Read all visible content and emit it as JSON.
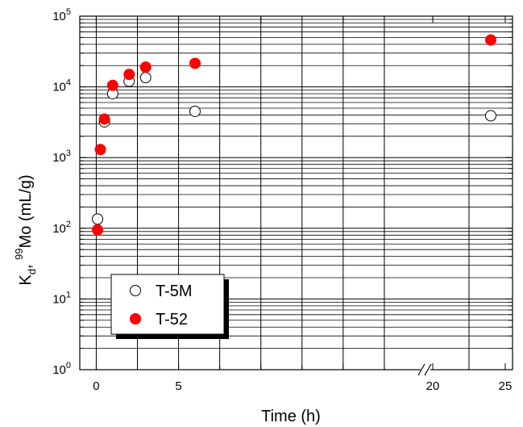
{
  "chart_data": {
    "type": "scatter",
    "title": "",
    "xlabel": "Time (h)",
    "ylabel": {
      "prefix": "K",
      "sub": "d",
      "comma": ", ",
      "sup": "99",
      "rest": "Mo (mL/g)"
    },
    "y_scale": "log",
    "ylim": [
      1,
      100000
    ],
    "x_segments": [
      {
        "range": [
          -1,
          20
        ]
      },
      {
        "range": [
          19.5,
          25.5
        ]
      }
    ],
    "x_ticks": [
      {
        "value": 0,
        "label": "0"
      },
      {
        "value": 5,
        "label": "5"
      },
      {
        "value": 20,
        "label": "20"
      },
      {
        "value": 25,
        "label": "25"
      }
    ],
    "y_ticks": [
      {
        "value": 1,
        "base": "10",
        "exp": "0"
      },
      {
        "value": 10,
        "base": "10",
        "exp": "1"
      },
      {
        "value": 100,
        "base": "10",
        "exp": "2"
      },
      {
        "value": 1000,
        "base": "10",
        "exp": "3"
      },
      {
        "value": 10000,
        "base": "10",
        "exp": "4"
      },
      {
        "value": 100000,
        "base": "10",
        "exp": "5"
      }
    ],
    "grid": true,
    "legend_position": "bottom-left",
    "series": [
      {
        "name": "T-5M",
        "marker": "open-circle",
        "color": "#000000",
        "x": [
          0.08,
          0.5,
          1,
          2,
          3,
          6,
          24
        ],
        "y": [
          135,
          3200,
          8000,
          12000,
          13500,
          4500,
          3900
        ]
      },
      {
        "name": "T-52",
        "marker": "filled-circle",
        "color": "#ff0000",
        "x": [
          0.08,
          0.25,
          0.5,
          1,
          2,
          3,
          6,
          24
        ],
        "y": [
          95,
          1300,
          3500,
          10500,
          15000,
          19000,
          21500,
          46000
        ]
      }
    ]
  }
}
